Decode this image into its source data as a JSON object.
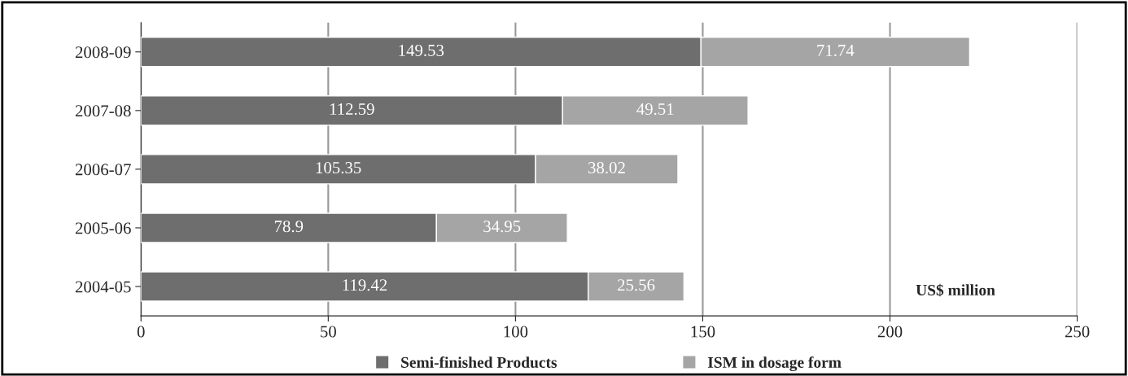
{
  "chart_data": {
    "type": "bar",
    "orientation": "horizontal",
    "stacked": true,
    "categories": [
      "2008-09",
      "2007-08",
      "2006-07",
      "2005-06",
      "2004-05"
    ],
    "series": [
      {
        "name": "Semi-finished Products",
        "color": "#6e6e6e",
        "values": [
          149.53,
          112.59,
          105.35,
          78.9,
          119.42
        ]
      },
      {
        "name": "ISM in dosage form",
        "color": "#a5a5a5",
        "values": [
          71.74,
          49.51,
          38.02,
          34.95,
          25.56
        ]
      }
    ],
    "xlim": [
      0,
      250
    ],
    "xticks": [
      0,
      50,
      100,
      150,
      200,
      250
    ],
    "grid": "x",
    "legend": "bottom",
    "data_labels": true,
    "annotations": [
      "US$ million"
    ]
  }
}
